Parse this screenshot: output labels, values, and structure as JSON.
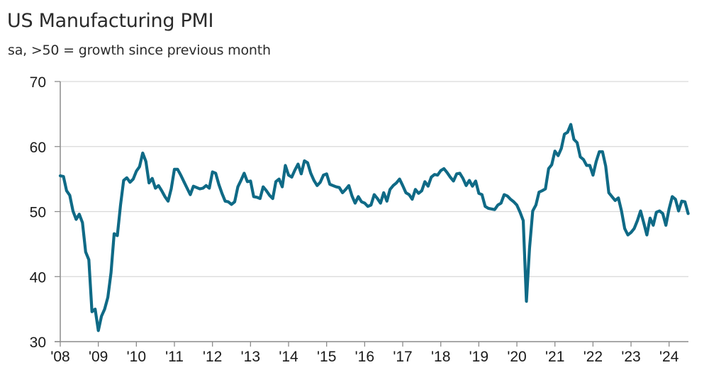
{
  "chart_data": {
    "type": "line",
    "title": "US Manufacturing PMI",
    "subtitle": "sa, >50 = growth since previous month",
    "xlabel": "",
    "ylabel": "",
    "ylim": [
      30,
      70
    ],
    "yticks": [
      30,
      40,
      50,
      60,
      70
    ],
    "ytick_labels": [
      "30",
      "40",
      "50",
      "60",
      "70"
    ],
    "xlim": [
      "2008-01",
      "2024-07"
    ],
    "xtick_labels": [
      "'08",
      "'09",
      "'10",
      "'11",
      "'12",
      "'13",
      "'14",
      "'15",
      "'16",
      "'17",
      "'18",
      "'19",
      "'20",
      "'21",
      "'22",
      "'23",
      "'24"
    ],
    "grid": "horizontal",
    "legend": "none",
    "line_color": "#0f6a86",
    "grid_color": "#d9d9d9",
    "axis_color": "#8c8c8c",
    "frequency": "monthly",
    "start": "2008-01",
    "series": [
      {
        "name": "US Manufacturing PMI",
        "values": [
          55.5,
          55.4,
          53.2,
          52.5,
          50.1,
          48.8,
          49.6,
          48.3,
          43.8,
          42.6,
          34.6,
          35.0,
          31.7,
          33.9,
          35.0,
          36.8,
          40.6,
          46.6,
          46.3,
          51.0,
          54.8,
          55.2,
          54.5,
          55.0,
          56.2,
          56.9,
          59.0,
          57.7,
          54.4,
          55.1,
          53.6,
          54.0,
          53.2,
          52.3,
          51.6,
          53.5,
          56.5,
          56.5,
          55.6,
          54.6,
          53.6,
          52.6,
          53.9,
          53.7,
          53.5,
          53.6,
          54.0,
          53.6,
          56.1,
          55.9,
          54.2,
          52.8,
          51.6,
          51.5,
          51.1,
          51.5,
          53.8,
          54.8,
          55.9,
          54.6,
          54.7,
          52.3,
          52.2,
          52.0,
          53.8,
          53.2,
          52.5,
          52.0,
          54.6,
          55.0,
          53.8,
          57.1,
          55.6,
          55.3,
          56.4,
          57.3,
          55.8,
          57.8,
          57.5,
          55.9,
          54.8,
          54.0,
          54.5,
          55.6,
          55.8,
          54.2,
          54.0,
          53.8,
          53.7,
          52.9,
          53.4,
          54.0,
          52.4,
          51.3,
          52.3,
          51.5,
          51.3,
          50.8,
          51.0,
          52.6,
          52.0,
          51.3,
          52.9,
          51.6,
          53.4,
          54.0,
          54.4,
          55.0,
          54.0,
          52.9,
          52.6,
          51.9,
          53.4,
          52.8,
          53.2,
          54.6,
          53.9,
          55.3,
          55.7,
          55.6,
          56.3,
          56.6,
          56.0,
          55.3,
          54.7,
          55.8,
          55.9,
          55.1,
          54.0,
          54.8,
          53.9,
          54.7,
          52.8,
          52.6,
          50.8,
          50.5,
          50.4,
          50.3,
          51.0,
          51.3,
          52.6,
          52.4,
          51.9,
          51.5,
          51.0,
          49.9,
          48.6,
          36.2,
          44.4,
          50.1,
          51.0,
          53.0,
          53.2,
          53.5,
          56.6,
          57.2,
          59.3,
          58.6,
          59.7,
          61.9,
          62.2,
          63.4,
          61.1,
          60.6,
          58.4,
          58.0,
          57.1,
          57.1,
          55.6,
          57.7,
          59.2,
          59.2,
          57.0,
          52.9,
          52.3,
          51.7,
          52.1,
          50.1,
          47.4,
          46.4,
          46.8,
          47.4,
          48.6,
          50.1,
          48.3,
          46.4,
          49.0,
          47.9,
          49.9,
          50.1,
          49.7,
          47.9,
          50.4,
          52.3,
          51.9,
          50.1,
          51.6,
          51.5,
          49.7
        ]
      }
    ]
  }
}
